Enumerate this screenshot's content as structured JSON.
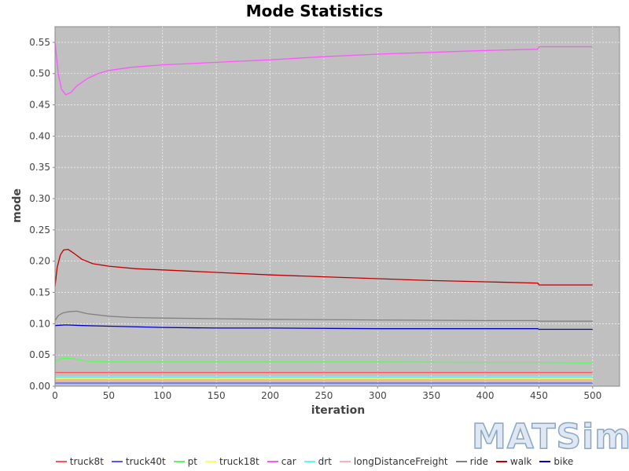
{
  "chart_data": {
    "type": "line",
    "title": "Mode Statistics",
    "xlabel": "iteration",
    "ylabel": "mode",
    "xlim": [
      0,
      525
    ],
    "ylim": [
      0,
      0.575
    ],
    "x_ticks": [
      0,
      50,
      100,
      150,
      200,
      250,
      300,
      350,
      400,
      450,
      500
    ],
    "y_ticks": [
      0.0,
      0.05,
      0.1,
      0.15,
      0.2,
      0.25,
      0.3,
      0.35,
      0.4,
      0.45,
      0.5,
      0.55
    ],
    "grid": true,
    "background": "#c0c0c0",
    "legend_placement": "bottom",
    "series": [
      {
        "name": "truck8t",
        "color": "#ff5555",
        "points": [
          [
            0,
            0.022
          ],
          [
            500,
            0.022
          ]
        ]
      },
      {
        "name": "truck40t",
        "color": "#5555ff",
        "points": [
          [
            0,
            0.005
          ],
          [
            500,
            0.005
          ]
        ]
      },
      {
        "name": "pt",
        "color": "#55ff55",
        "points": [
          [
            0,
            0.038
          ],
          [
            5,
            0.044
          ],
          [
            10,
            0.045
          ],
          [
            20,
            0.043
          ],
          [
            30,
            0.04
          ],
          [
            50,
            0.039
          ],
          [
            100,
            0.039
          ],
          [
            200,
            0.039
          ],
          [
            300,
            0.039
          ],
          [
            400,
            0.038
          ],
          [
            450,
            0.038
          ],
          [
            500,
            0.037
          ]
        ]
      },
      {
        "name": "truck18t",
        "color": "#ffff55",
        "points": [
          [
            0,
            0.012
          ],
          [
            500,
            0.012
          ]
        ]
      },
      {
        "name": "car",
        "color": "#ff55ff",
        "points": [
          [
            0,
            0.55
          ],
          [
            3,
            0.5
          ],
          [
            6,
            0.475
          ],
          [
            10,
            0.466
          ],
          [
            15,
            0.47
          ],
          [
            20,
            0.48
          ],
          [
            30,
            0.492
          ],
          [
            40,
            0.5
          ],
          [
            50,
            0.505
          ],
          [
            70,
            0.51
          ],
          [
            100,
            0.514
          ],
          [
            150,
            0.518
          ],
          [
            200,
            0.522
          ],
          [
            250,
            0.527
          ],
          [
            300,
            0.531
          ],
          [
            350,
            0.534
          ],
          [
            400,
            0.537
          ],
          [
            449,
            0.539
          ],
          [
            450,
            0.543
          ],
          [
            500,
            0.543
          ]
        ]
      },
      {
        "name": "drt",
        "color": "#55ffff",
        "points": [
          [
            0,
            0.015
          ],
          [
            500,
            0.015
          ]
        ]
      },
      {
        "name": "longDistanceFreight",
        "color": "#ffafaf",
        "points": [
          [
            0,
            0.009
          ],
          [
            500,
            0.009
          ]
        ]
      },
      {
        "name": "ride",
        "color": "#808080",
        "points": [
          [
            0,
            0.105
          ],
          [
            3,
            0.113
          ],
          [
            7,
            0.117
          ],
          [
            12,
            0.119
          ],
          [
            20,
            0.12
          ],
          [
            30,
            0.116
          ],
          [
            50,
            0.112
          ],
          [
            70,
            0.11
          ],
          [
            100,
            0.109
          ],
          [
            150,
            0.108
          ],
          [
            200,
            0.107
          ],
          [
            300,
            0.106
          ],
          [
            400,
            0.105
          ],
          [
            449,
            0.105
          ],
          [
            450,
            0.104
          ],
          [
            500,
            0.104
          ]
        ]
      },
      {
        "name": "walk",
        "color": "#c00000",
        "points": [
          [
            0,
            0.16
          ],
          [
            2,
            0.19
          ],
          [
            5,
            0.21
          ],
          [
            8,
            0.218
          ],
          [
            12,
            0.219
          ],
          [
            18,
            0.212
          ],
          [
            25,
            0.203
          ],
          [
            35,
            0.196
          ],
          [
            50,
            0.192
          ],
          [
            75,
            0.188
          ],
          [
            100,
            0.186
          ],
          [
            150,
            0.182
          ],
          [
            200,
            0.178
          ],
          [
            250,
            0.175
          ],
          [
            300,
            0.172
          ],
          [
            350,
            0.169
          ],
          [
            400,
            0.167
          ],
          [
            449,
            0.165
          ],
          [
            450,
            0.162
          ],
          [
            500,
            0.162
          ]
        ]
      },
      {
        "name": "bike",
        "color": "#0000c0",
        "points": [
          [
            0,
            0.097
          ],
          [
            10,
            0.098
          ],
          [
            25,
            0.097
          ],
          [
            50,
            0.096
          ],
          [
            100,
            0.094
          ],
          [
            150,
            0.093
          ],
          [
            200,
            0.093
          ],
          [
            300,
            0.092
          ],
          [
            400,
            0.092
          ],
          [
            449,
            0.092
          ],
          [
            450,
            0.091
          ],
          [
            500,
            0.091
          ]
        ]
      }
    ]
  },
  "watermark": {
    "text": "MATSim"
  }
}
